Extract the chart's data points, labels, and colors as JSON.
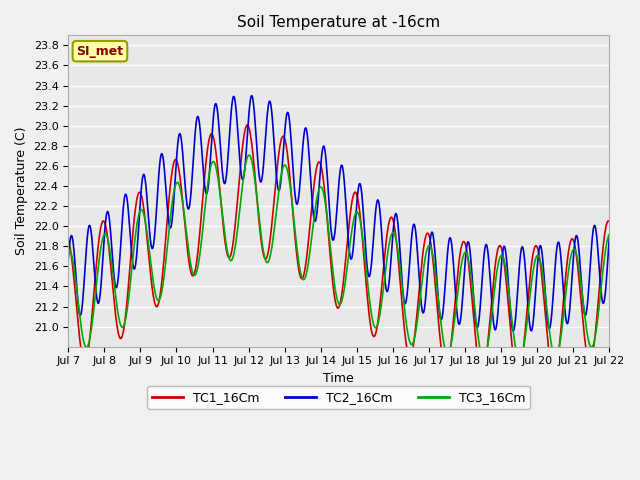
{
  "title": "Soil Temperature at -16cm",
  "xlabel": "Time",
  "ylabel": "Soil Temperature (C)",
  "ylim": [
    20.8,
    23.9
  ],
  "yticks": [
    21.0,
    21.2,
    21.4,
    21.6,
    21.8,
    22.0,
    22.2,
    22.4,
    22.6,
    22.8,
    23.0,
    23.2,
    23.4,
    23.6,
    23.8
  ],
  "xtick_labels": [
    "Jul 7",
    "Jul 8",
    "Jul 9",
    "Jul 10",
    "Jul 11",
    "Jul 12",
    "Jul 13",
    "Jul 14",
    "Jul 15",
    "Jul 16",
    "Jul 17",
    "Jul 18",
    "Jul 19",
    "Jul 20",
    "Jul 21",
    "Jul 22"
  ],
  "colors": {
    "TC1": "#cc0000",
    "TC2": "#0000cc",
    "TC3": "#00aa00"
  },
  "legend_label": "SI_met",
  "legend_bg": "#ffffaa",
  "legend_border": "#999900",
  "legend_text_color": "#880000",
  "plot_bg": "#e8e8e8",
  "fig_bg": "#f0f0f0",
  "grid_color": "#ffffff",
  "linewidth": 1.2,
  "n_days": 15,
  "n_pts": 1440,
  "TC1_base": 21.65,
  "TC1_amp": 0.65,
  "TC1_freq": 1.0,
  "TC1_phase": 1.8,
  "TC1_trend_amp": 0.6,
  "TC1_trend_period": 12,
  "TC1_trend_phase": -2.0,
  "TC2_base": 22.0,
  "TC2_amp": 0.42,
  "TC2_freq": 2.0,
  "TC2_phase": 0.5,
  "TC2_trend_amp": 0.75,
  "TC2_trend_period": 12,
  "TC2_trend_phase": -2.0,
  "TC3_base": 21.6,
  "TC3_amp": 0.52,
  "TC3_freq": 1.0,
  "TC3_phase": 1.5,
  "TC3_trend_amp": 0.5,
  "TC3_trend_period": 12,
  "TC3_trend_phase": -2.0
}
